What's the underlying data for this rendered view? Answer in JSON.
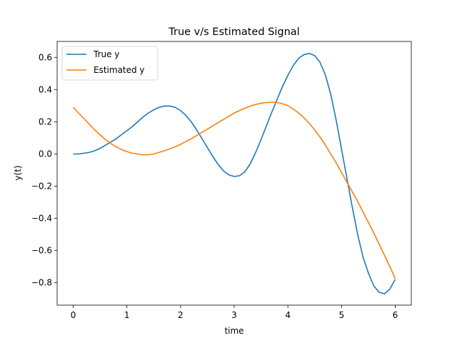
{
  "chart_data": {
    "type": "line",
    "title": "True v/s Estimated Signal",
    "xlabel": "time",
    "ylabel": "y(t)",
    "xlim": [
      -0.3,
      6.3
    ],
    "ylim": [
      -0.94,
      0.7
    ],
    "xticks": [
      0,
      1,
      2,
      3,
      4,
      5,
      6
    ],
    "yticks": [
      -0.8,
      -0.6,
      -0.4,
      -0.2,
      0.0,
      0.2,
      0.4,
      0.6
    ],
    "ytick_labels": [
      "−0.8",
      "−0.6",
      "−0.4",
      "−0.2",
      "0.0",
      "0.2",
      "0.4",
      "0.6"
    ],
    "grid": false,
    "legend_position": "top-left",
    "series": [
      {
        "name": "True y",
        "color": "#1f77b4",
        "x": [
          0,
          0.1,
          0.2,
          0.3,
          0.4,
          0.5,
          0.6,
          0.7,
          0.8,
          0.9,
          1.0,
          1.1,
          1.2,
          1.3,
          1.4,
          1.5,
          1.6,
          1.7,
          1.8,
          1.9,
          2.0,
          2.1,
          2.2,
          2.3,
          2.4,
          2.5,
          2.6,
          2.7,
          2.8,
          2.9,
          3.0,
          3.1,
          3.2,
          3.3,
          3.4,
          3.5,
          3.6,
          3.7,
          3.8,
          3.9,
          4.0,
          4.1,
          4.2,
          4.3,
          4.4,
          4.5,
          4.6,
          4.7,
          4.8,
          4.9,
          5.0,
          5.1,
          5.2,
          5.3,
          5.4,
          5.5,
          5.6,
          5.7,
          5.8,
          5.9,
          6.0
        ],
        "values": [
          0.0,
          0.0,
          0.005,
          0.01,
          0.02,
          0.035,
          0.055,
          0.075,
          0.095,
          0.12,
          0.145,
          0.17,
          0.2,
          0.23,
          0.255,
          0.275,
          0.29,
          0.298,
          0.298,
          0.29,
          0.27,
          0.24,
          0.2,
          0.15,
          0.095,
          0.04,
          -0.015,
          -0.065,
          -0.105,
          -0.13,
          -0.14,
          -0.135,
          -0.11,
          -0.06,
          0.01,
          0.09,
          0.175,
          0.26,
          0.34,
          0.42,
          0.49,
          0.55,
          0.595,
          0.618,
          0.625,
          0.612,
          0.57,
          0.49,
          0.37,
          0.21,
          0.03,
          -0.15,
          -0.33,
          -0.5,
          -0.64,
          -0.74,
          -0.82,
          -0.86,
          -0.87,
          -0.84,
          -0.78
        ]
      },
      {
        "name": "Estimated y",
        "color": "#ff7f0e",
        "x": [
          0,
          0.1,
          0.2,
          0.3,
          0.4,
          0.5,
          0.6,
          0.7,
          0.8,
          0.9,
          1.0,
          1.1,
          1.2,
          1.3,
          1.4,
          1.5,
          1.6,
          1.7,
          1.8,
          1.9,
          2.0,
          2.1,
          2.2,
          2.3,
          2.4,
          2.5,
          2.6,
          2.7,
          2.8,
          2.9,
          3.0,
          3.1,
          3.2,
          3.3,
          3.4,
          3.5,
          3.6,
          3.7,
          3.8,
          3.9,
          4.0,
          4.1,
          4.2,
          4.3,
          4.4,
          4.5,
          4.6,
          4.7,
          4.8,
          4.9,
          5.0,
          5.1,
          5.2,
          5.3,
          5.4,
          5.5,
          5.6,
          5.7,
          5.8,
          5.9,
          6.0
        ],
        "values": [
          0.29,
          0.255,
          0.22,
          0.185,
          0.15,
          0.12,
          0.09,
          0.065,
          0.045,
          0.028,
          0.015,
          0.005,
          0.0,
          -0.005,
          -0.005,
          0.0,
          0.01,
          0.02,
          0.032,
          0.045,
          0.06,
          0.078,
          0.095,
          0.115,
          0.135,
          0.155,
          0.175,
          0.195,
          0.215,
          0.235,
          0.255,
          0.27,
          0.285,
          0.298,
          0.308,
          0.316,
          0.32,
          0.322,
          0.32,
          0.313,
          0.3,
          0.28,
          0.255,
          0.225,
          0.19,
          0.15,
          0.105,
          0.055,
          0.0,
          -0.055,
          -0.115,
          -0.175,
          -0.235,
          -0.295,
          -0.36,
          -0.425,
          -0.49,
          -0.56,
          -0.63,
          -0.7,
          -0.775
        ]
      }
    ]
  }
}
